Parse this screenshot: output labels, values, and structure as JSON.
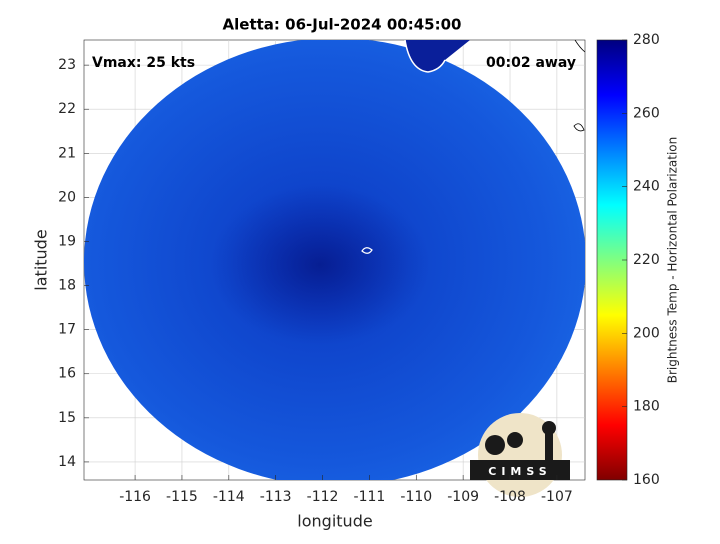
{
  "title": "Aletta: 06-Jul-2024 00:45:00",
  "annotations": {
    "vmax": "Vmax: 25 kts",
    "time_away": "00:02 away"
  },
  "map": {
    "xlabel": "longitude",
    "ylabel": "latitude",
    "xlim": [
      -117.09,
      -106.4
    ],
    "ylim": [
      13.59,
      23.57
    ],
    "xticks": [
      -116,
      -115,
      -114,
      -113,
      -112,
      -111,
      -110,
      -109,
      -108,
      -107
    ],
    "yticks": [
      14,
      15,
      16,
      17,
      18,
      19,
      20,
      21,
      22,
      23
    ],
    "grid": true
  },
  "colorbar": {
    "label": "Brightness Temp - Horizontal Polarization",
    "lim": [
      160,
      280
    ],
    "ticks": [
      160,
      180,
      200,
      220,
      240,
      260,
      280
    ]
  },
  "logo": {
    "text": "CIMSS"
  }
}
